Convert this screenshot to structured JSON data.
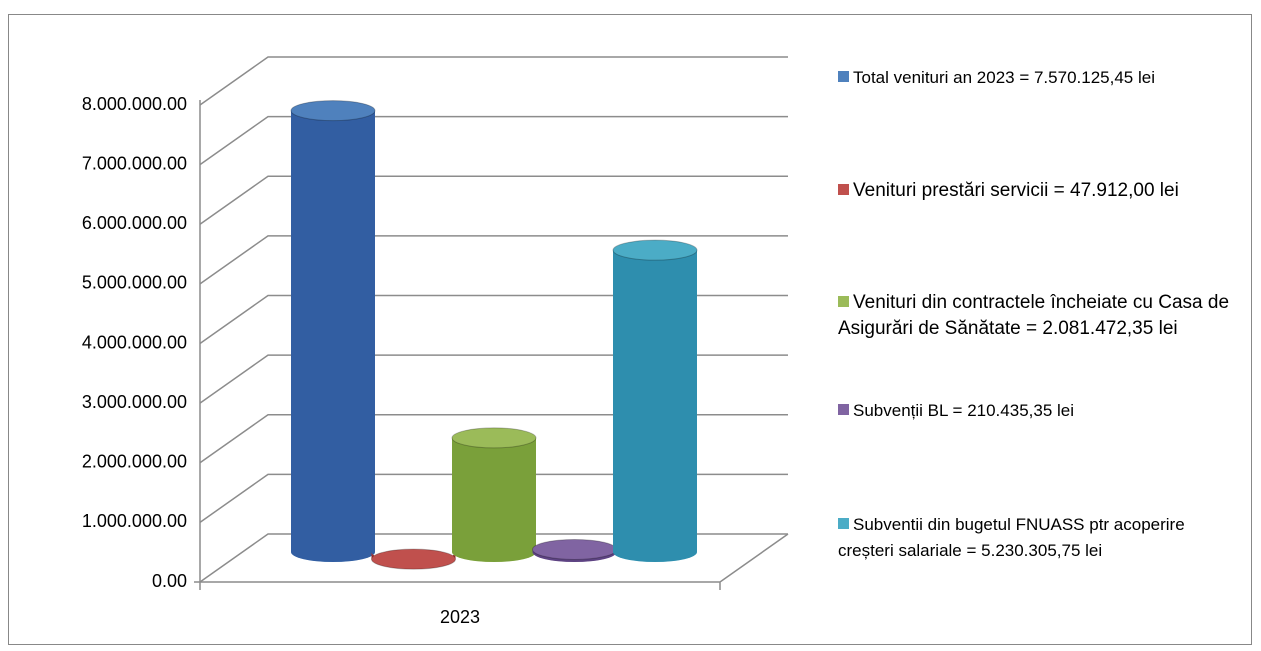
{
  "chart_data": {
    "type": "bar3d-cylinder",
    "categories": [
      "2023"
    ],
    "series": [
      {
        "name": "Total venituri an 2023 = 7.570.125,45 lei",
        "color": "#4f81bd",
        "values": [
          7570125.45
        ]
      },
      {
        "name": "Venituri prestări servicii = 47.912,00 lei",
        "color": "#c0504d",
        "values": [
          47912
        ]
      },
      {
        "name": "Venituri din contractele încheiate cu Casa de Asigurări de Sănătate = 2.081.472,35 lei",
        "color": "#9bbb59",
        "values": [
          2081472.35
        ]
      },
      {
        "name": "Subvenții BL = 210.435,35 lei",
        "color": "#8064a2",
        "values": [
          210435.35
        ]
      },
      {
        "name": "Subventii din bugetul FNUASS ptr acoperire creșteri salariale = 5.230.305,75 lei",
        "color": "#4bacc6",
        "values": [
          5230305.75
        ]
      }
    ],
    "ylim": [
      0,
      8000000
    ],
    "yticks": [
      {
        "value": 0,
        "label": "0.00"
      },
      {
        "value": 1000000,
        "label": "1.000.000.00"
      },
      {
        "value": 2000000,
        "label": "2.000.000.00"
      },
      {
        "value": 3000000,
        "label": "3.000.000.00"
      },
      {
        "value": 4000000,
        "label": "4.000.000.00"
      },
      {
        "value": 5000000,
        "label": "5.000.000.00"
      },
      {
        "value": 6000000,
        "label": "6.000.000.00"
      },
      {
        "value": 7000000,
        "label": "7.000.000.00"
      },
      {
        "value": 8000000,
        "label": "8.000.000.00"
      }
    ],
    "grid": true,
    "legend": "right"
  }
}
